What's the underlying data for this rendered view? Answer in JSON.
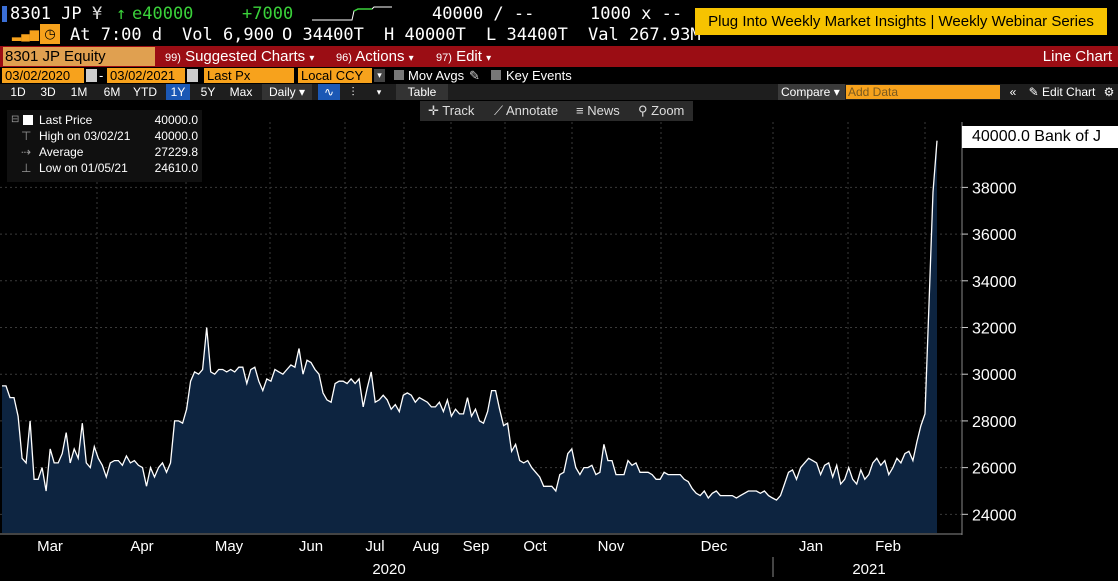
{
  "header": {
    "ticker": "8301 JP",
    "currency_symbol": "¥",
    "arrow": "↑",
    "last": "e40000",
    "change": "+7000",
    "bid": "40000 / --",
    "bid_size": "1000 x --",
    "at": "At 7:00 d",
    "vol": "Vol 6,900",
    "open": "O 34400T",
    "high": "H 40000T",
    "low": "L 34400T",
    "val": "Val 267.93M"
  },
  "ad_banner": "Plug Into Weekly Market Insights | Weekly Webinar Series",
  "menubar": {
    "security": "8301 JP Equity",
    "suggested_num": "99)",
    "suggested": "Suggested Charts",
    "actions_num": "96)",
    "actions": "Actions",
    "edit_num": "97)",
    "edit": "Edit",
    "chart_kind": "Line Chart"
  },
  "fields": {
    "start_date": "03/02/2020",
    "dash": "-",
    "end_date": "03/02/2021",
    "field": "Last Px",
    "currency": "Local CCY",
    "mov_avgs": "Mov Avgs",
    "key_events": "Key Events"
  },
  "periods": [
    "1D",
    "3D",
    "1M",
    "6M",
    "YTD",
    "1Y",
    "5Y",
    "Max"
  ],
  "active_period": "1Y",
  "frequency": "Daily",
  "table_label": "Table",
  "compare_label": "Compare",
  "add_data_placeholder": "Add Data",
  "edit_chart_label": "Edit Chart",
  "tools": {
    "track": "Track",
    "annotate": "Annotate",
    "news": "News",
    "zoom": "Zoom"
  },
  "legend": {
    "last_price_label": "Last Price",
    "last_price_value": "40000.0",
    "high_label": "High on 03/02/21",
    "high_value": "40000.0",
    "avg_label": "Average",
    "avg_value": "27229.8",
    "low_label": "Low on 01/05/21",
    "low_value": "24610.0"
  },
  "last_label": "40000.0 Bank of J",
  "colors": {
    "area": "#0d2440",
    "line": "#ffffff",
    "accent": "#f7a21c",
    "menubar": "#9b0d14",
    "active": "#1b58b5"
  },
  "chart_data": {
    "type": "area",
    "ylim": [
      23200,
      40800
    ],
    "yticks": [
      24000,
      26000,
      28000,
      30000,
      32000,
      34000,
      36000,
      38000
    ],
    "month_labels": [
      "Mar",
      "Apr",
      "May",
      "Jun",
      "Jul",
      "Aug",
      "Sep",
      "Oct",
      "Nov",
      "Dec",
      "Jan",
      "Feb"
    ],
    "year_labels": [
      "2020",
      "2021"
    ],
    "grid": true,
    "values": [
      29500,
      29500,
      29000,
      29000,
      28200,
      26400,
      26200,
      28000,
      25500,
      25500,
      26000,
      25000,
      26800,
      26200,
      26200,
      26600,
      27500,
      26200,
      26800,
      26400,
      27900,
      26200,
      26000,
      26900,
      26400,
      26100,
      25600,
      26200,
      26300,
      26300,
      26100,
      26500,
      26200,
      26300,
      26100,
      26000,
      25200,
      26000,
      25600,
      26000,
      26200,
      25800,
      26200,
      28000,
      28000,
      27900,
      28500,
      29700,
      30100,
      30000,
      30200,
      32000,
      30100,
      30000,
      30200,
      30200,
      30100,
      30200,
      30100,
      30300,
      30300,
      29600,
      30200,
      30300,
      29700,
      29300,
      29800,
      29700,
      30200,
      30100,
      30000,
      30200,
      30400,
      30300,
      31100,
      30000,
      30600,
      30500,
      30200,
      30000,
      29200,
      28900,
      28800,
      29600,
      29700,
      29700,
      29600,
      29800,
      29600,
      29800,
      28600,
      29400,
      30100,
      28800,
      28900,
      29100,
      28900,
      28500,
      28700,
      28400,
      29100,
      29200,
      29100,
      28800,
      29000,
      28900,
      28800,
      28600,
      28600,
      28800,
      28400,
      28900,
      28200,
      28500,
      28300,
      28300,
      29000,
      28200,
      28500,
      28000,
      27900,
      28400,
      29300,
      29300,
      28500,
      27800,
      27900,
      26700,
      27000,
      26300,
      26200,
      26300,
      26000,
      25800,
      25600,
      25200,
      25200,
      25200,
      25000,
      25700,
      25800,
      26600,
      26800,
      26000,
      25700,
      26000,
      26000,
      26100,
      25700,
      25800,
      27000,
      26300,
      26300,
      25700,
      25700,
      25700,
      26300,
      26100,
      26200,
      25800,
      25800,
      25800,
      25700,
      25500,
      25500,
      25800,
      25700,
      25700,
      25700,
      25700,
      25500,
      25400,
      25100,
      24900,
      24800,
      25000,
      24700,
      24900,
      25000,
      24800,
      24800,
      24800,
      24800,
      24700,
      24800,
      24900,
      25000,
      25000,
      25000,
      24900,
      25000,
      24800,
      24700,
      24610,
      24800,
      25300,
      25800,
      25900,
      25500,
      26000,
      26200,
      26400,
      26300,
      26200,
      25700,
      26100,
      26200,
      25600,
      26100,
      25300,
      25500,
      26000,
      25500,
      25300,
      25900,
      25500,
      25700,
      26200,
      26400,
      26100,
      26300,
      25700,
      26000,
      26400,
      26200,
      26600,
      26700,
      26300,
      27100,
      27800,
      28300,
      33000,
      37800,
      40000
    ]
  }
}
